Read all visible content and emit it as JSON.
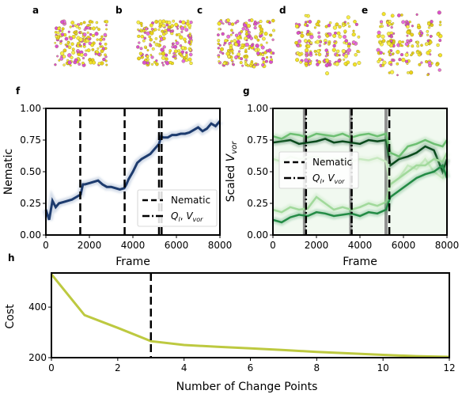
{
  "panel_labels": [
    "a",
    "b",
    "c",
    "d",
    "e",
    "f",
    "g",
    "h"
  ],
  "chart_data": [
    {
      "panel": "f",
      "type": "line",
      "xlabel": "Frame",
      "ylabel": "Nematic",
      "xlim": [
        0,
        8000
      ],
      "ylim": [
        0,
        1.0
      ],
      "xticks": [
        0,
        2000,
        4000,
        6000,
        8000
      ],
      "yticks": [
        0.0,
        0.25,
        0.5,
        0.75,
        1.0
      ],
      "xtick_labels": [
        "0",
        "2000",
        "4000",
        "6000",
        "8000"
      ],
      "ytick_labels": [
        "0.00",
        "0.25",
        "0.50",
        "0.75",
        "1.00"
      ],
      "series": [
        {
          "color": "#1d3b6e",
          "x": [
            0,
            150,
            300,
            450,
            600,
            800,
            1000,
            1200,
            1400,
            1600,
            1700,
            1800,
            2000,
            2200,
            2400,
            2600,
            2800,
            3000,
            3200,
            3400,
            3600,
            3700,
            3800,
            4000,
            4200,
            4400,
            4600,
            4800,
            5000,
            5200,
            5300,
            5400,
            5600,
            5800,
            6000,
            6200,
            6400,
            6600,
            6800,
            7000,
            7200,
            7400,
            7600,
            7800,
            8000
          ],
          "values": [
            0.2,
            0.12,
            0.27,
            0.22,
            0.25,
            0.26,
            0.27,
            0.28,
            0.3,
            0.32,
            0.4,
            0.4,
            0.41,
            0.42,
            0.43,
            0.4,
            0.38,
            0.38,
            0.37,
            0.36,
            0.37,
            0.4,
            0.44,
            0.5,
            0.57,
            0.6,
            0.62,
            0.64,
            0.68,
            0.72,
            0.78,
            0.77,
            0.77,
            0.79,
            0.79,
            0.8,
            0.8,
            0.81,
            0.83,
            0.85,
            0.82,
            0.84,
            0.88,
            0.86,
            0.9
          ]
        }
      ],
      "vlines": [
        {
          "x": 1580,
          "style": "dashed"
        },
        {
          "x": 3620,
          "style": "dashed"
        },
        {
          "x": 5200,
          "style": "dashed"
        },
        {
          "x": 5320,
          "style": "dashed"
        }
      ],
      "legend": {
        "placement": "lower-right",
        "entries": [
          "Nematic",
          "Q_l, V_vor"
        ]
      }
    },
    {
      "panel": "g",
      "type": "line",
      "xlabel": "Frame",
      "ylabel": "Scaled V_vor",
      "xlim": [
        0,
        8000
      ],
      "ylim": [
        0,
        1.0
      ],
      "xticks": [
        0,
        2000,
        4000,
        6000,
        8000
      ],
      "yticks": [
        0.0,
        0.25,
        0.5,
        0.75,
        1.0
      ],
      "xtick_labels": [
        "0",
        "2000",
        "4000",
        "6000",
        "8000"
      ],
      "ytick_labels": [
        "0.00",
        "0.25",
        "0.50",
        "0.75",
        "1.00"
      ],
      "x": [
        0,
        400,
        800,
        1200,
        1600,
        2000,
        2400,
        2800,
        3200,
        3600,
        4000,
        4400,
        4800,
        5200,
        5400,
        5800,
        6200,
        6600,
        7000,
        7400,
        7800,
        8000
      ],
      "series": [
        {
          "color": "#0a4a1c",
          "values": [
            0.73,
            0.74,
            0.75,
            0.72,
            0.73,
            0.74,
            0.76,
            0.73,
            0.74,
            0.73,
            0.72,
            0.75,
            0.74,
            0.75,
            0.55,
            0.6,
            0.62,
            0.65,
            0.7,
            0.67,
            0.5,
            0.6
          ]
        },
        {
          "color": "#6dbf72",
          "values": [
            0.78,
            0.76,
            0.8,
            0.79,
            0.77,
            0.8,
            0.79,
            0.78,
            0.8,
            0.77,
            0.79,
            0.8,
            0.78,
            0.8,
            0.65,
            0.62,
            0.7,
            0.72,
            0.75,
            0.72,
            0.7,
            0.75
          ]
        },
        {
          "color": "#c7e9c0",
          "values": [
            0.6,
            0.58,
            0.62,
            0.6,
            0.61,
            0.62,
            0.59,
            0.6,
            0.6,
            0.58,
            0.6,
            0.59,
            0.61,
            0.58,
            0.4,
            0.45,
            0.55,
            0.52,
            0.6,
            0.5,
            0.45,
            0.52
          ]
        },
        {
          "color": "#a1d99b",
          "values": [
            0.2,
            0.18,
            0.22,
            0.2,
            0.21,
            0.3,
            0.25,
            0.2,
            0.22,
            0.2,
            0.22,
            0.25,
            0.23,
            0.26,
            0.4,
            0.45,
            0.5,
            0.55,
            0.55,
            0.6,
            0.58,
            0.65
          ]
        },
        {
          "color": "#238b45",
          "values": [
            0.12,
            0.1,
            0.14,
            0.16,
            0.15,
            0.18,
            0.17,
            0.15,
            0.16,
            0.17,
            0.15,
            0.18,
            0.17,
            0.2,
            0.3,
            0.35,
            0.4,
            0.45,
            0.48,
            0.5,
            0.55,
            0.45
          ]
        }
      ],
      "vlines": [
        {
          "x": 1450,
          "style": "solid-gray"
        },
        {
          "x": 3580,
          "style": "solid-gray"
        },
        {
          "x": 5200,
          "style": "solid-gray"
        },
        {
          "x": 1520,
          "style": "dashdot"
        },
        {
          "x": 3620,
          "style": "dashdot"
        },
        {
          "x": 5350,
          "style": "dashed"
        }
      ],
      "legend": {
        "placement": "center-left",
        "entries": [
          "Nematic",
          "Q_l, V_vor"
        ]
      }
    },
    {
      "panel": "h",
      "type": "line",
      "xlabel": "Number of Change Points",
      "ylabel": "Cost",
      "xlim": [
        0,
        12
      ],
      "ylim": [
        200,
        535
      ],
      "xticks": [
        0,
        2,
        4,
        6,
        8,
        10,
        12
      ],
      "yticks": [
        200,
        400
      ],
      "xtick_labels": [
        "0",
        "2",
        "4",
        "6",
        "8",
        "10",
        "12"
      ],
      "ytick_labels": [
        "200",
        "400"
      ],
      "series": [
        {
          "color": "#bdc940",
          "x": [
            0,
            1,
            2,
            3,
            4,
            5,
            6,
            7,
            8,
            9,
            10,
            11,
            12
          ],
          "values": [
            530,
            368,
            318,
            265,
            250,
            243,
            237,
            230,
            223,
            217,
            211,
            206,
            203
          ]
        }
      ],
      "vlines": [
        {
          "x": 3,
          "style": "dashed"
        }
      ]
    }
  ]
}
